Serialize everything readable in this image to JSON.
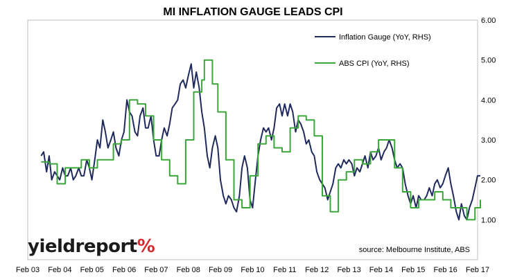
{
  "chart_data": {
    "type": "line",
    "title": "MI INFLATION GAUGE LEADS CPI",
    "x_ticks": [
      "Feb 03",
      "Feb 04",
      "Feb 05",
      "Feb 06",
      "Feb 07",
      "Feb 08",
      "Feb 09",
      "Feb 10",
      "Feb 11",
      "Feb 12",
      "Feb 13",
      "Feb 14",
      "Feb 15",
      "Feb 16",
      "Feb 17"
    ],
    "y_ticks": [
      "6.00",
      "5.00",
      "4.00",
      "3.00",
      "2.00",
      "1.00"
    ],
    "ylim": [
      0,
      6
    ],
    "xlim": [
      2003.083,
      2017.083
    ],
    "y_axis_side": "right",
    "grid": false,
    "legend_position": "top-right",
    "source": "source: Melbourne Institute, ABS",
    "series": [
      {
        "name": "Inflation Gauge (YoY, RHS)",
        "color": "#1f2a5c",
        "points": [
          [
            2003.5,
            2.6
          ],
          [
            2003.58,
            2.7
          ],
          [
            2003.67,
            2.2
          ],
          [
            2003.75,
            2.6
          ],
          [
            2003.83,
            2.0
          ],
          [
            2003.92,
            2.2
          ],
          [
            2004.0,
            2.1
          ],
          [
            2004.08,
            2.0
          ],
          [
            2004.17,
            2.3
          ],
          [
            2004.25,
            2.1
          ],
          [
            2004.33,
            2.1
          ],
          [
            2004.42,
            2.3
          ],
          [
            2004.5,
            2.0
          ],
          [
            2004.58,
            2.1
          ],
          [
            2004.67,
            2.3
          ],
          [
            2004.75,
            2.1
          ],
          [
            2004.83,
            2.1
          ],
          [
            2004.92,
            2.5
          ],
          [
            2005.0,
            2.3
          ],
          [
            2005.08,
            2.0
          ],
          [
            2005.17,
            2.5
          ],
          [
            2005.25,
            3.0
          ],
          [
            2005.33,
            2.8
          ],
          [
            2005.42,
            3.5
          ],
          [
            2005.5,
            3.2
          ],
          [
            2005.58,
            2.8
          ],
          [
            2005.67,
            3.0
          ],
          [
            2005.75,
            3.2
          ],
          [
            2005.83,
            2.8
          ],
          [
            2005.92,
            2.6
          ],
          [
            2006.0,
            3.0
          ],
          [
            2006.08,
            3.2
          ],
          [
            2006.17,
            4.0
          ],
          [
            2006.25,
            3.7
          ],
          [
            2006.33,
            3.6
          ],
          [
            2006.42,
            3.2
          ],
          [
            2006.5,
            3.1
          ],
          [
            2006.58,
            3.6
          ],
          [
            2006.67,
            3.8
          ],
          [
            2006.75,
            3.3
          ],
          [
            2006.83,
            3.3
          ],
          [
            2006.92,
            3.6
          ],
          [
            2007.0,
            3.0
          ],
          [
            2007.08,
            2.6
          ],
          [
            2007.17,
            2.6
          ],
          [
            2007.25,
            3.0
          ],
          [
            2007.33,
            3.3
          ],
          [
            2007.42,
            3.1
          ],
          [
            2007.5,
            3.4
          ],
          [
            2007.58,
            3.8
          ],
          [
            2007.67,
            3.9
          ],
          [
            2007.75,
            4.0
          ],
          [
            2007.83,
            4.4
          ],
          [
            2007.92,
            4.5
          ],
          [
            2008.0,
            4.3
          ],
          [
            2008.08,
            4.6
          ],
          [
            2008.17,
            4.9
          ],
          [
            2008.25,
            4.3
          ],
          [
            2008.33,
            4.7
          ],
          [
            2008.42,
            4.3
          ],
          [
            2008.5,
            3.7
          ],
          [
            2008.58,
            3.3
          ],
          [
            2008.67,
            2.6
          ],
          [
            2008.75,
            2.3
          ],
          [
            2008.83,
            2.8
          ],
          [
            2008.92,
            3.1
          ],
          [
            2009.0,
            2.8
          ],
          [
            2009.08,
            2.0
          ],
          [
            2009.17,
            1.6
          ],
          [
            2009.25,
            1.4
          ],
          [
            2009.33,
            1.6
          ],
          [
            2009.42,
            1.5
          ],
          [
            2009.5,
            1.3
          ],
          [
            2009.58,
            1.2
          ],
          [
            2009.67,
            1.6
          ],
          [
            2009.75,
            2.3
          ],
          [
            2009.83,
            2.6
          ],
          [
            2009.92,
            2.3
          ],
          [
            2010.0,
            1.5
          ],
          [
            2010.08,
            1.3
          ],
          [
            2010.17,
            2.0
          ],
          [
            2010.25,
            2.6
          ],
          [
            2010.33,
            3.0
          ],
          [
            2010.42,
            3.3
          ],
          [
            2010.5,
            3.2
          ],
          [
            2010.58,
            3.3
          ],
          [
            2010.67,
            3.0
          ],
          [
            2010.75,
            3.3
          ],
          [
            2010.83,
            3.8
          ],
          [
            2010.92,
            3.9
          ],
          [
            2011.0,
            3.6
          ],
          [
            2011.08,
            3.9
          ],
          [
            2011.17,
            3.6
          ],
          [
            2011.25,
            3.9
          ],
          [
            2011.33,
            3.7
          ],
          [
            2011.42,
            3.2
          ],
          [
            2011.5,
            3.5
          ],
          [
            2011.58,
            3.4
          ],
          [
            2011.67,
            3.2
          ],
          [
            2011.75,
            2.9
          ],
          [
            2011.83,
            3.0
          ],
          [
            2011.92,
            2.7
          ],
          [
            2012.0,
            2.6
          ],
          [
            2012.08,
            2.2
          ],
          [
            2012.17,
            2.0
          ],
          [
            2012.25,
            1.9
          ],
          [
            2012.33,
            1.8
          ],
          [
            2012.42,
            1.5
          ],
          [
            2012.5,
            1.7
          ],
          [
            2012.58,
            1.9
          ],
          [
            2012.67,
            2.3
          ],
          [
            2012.75,
            2.4
          ],
          [
            2012.83,
            2.3
          ],
          [
            2012.92,
            2.5
          ],
          [
            2013.0,
            2.4
          ],
          [
            2013.08,
            2.5
          ],
          [
            2013.17,
            2.4
          ],
          [
            2013.25,
            2.1
          ],
          [
            2013.33,
            2.3
          ],
          [
            2013.42,
            2.2
          ],
          [
            2013.5,
            2.4
          ],
          [
            2013.58,
            2.6
          ],
          [
            2013.67,
            2.3
          ],
          [
            2013.75,
            2.7
          ],
          [
            2013.83,
            2.5
          ],
          [
            2013.92,
            2.6
          ],
          [
            2014.0,
            2.8
          ],
          [
            2014.08,
            2.5
          ],
          [
            2014.17,
            2.7
          ],
          [
            2014.25,
            2.8
          ],
          [
            2014.33,
            3.0
          ],
          [
            2014.42,
            2.8
          ],
          [
            2014.5,
            2.5
          ],
          [
            2014.58,
            2.3
          ],
          [
            2014.67,
            2.4
          ],
          [
            2014.75,
            2.3
          ],
          [
            2014.83,
            1.9
          ],
          [
            2014.92,
            1.6
          ],
          [
            2015.0,
            1.4
          ],
          [
            2015.08,
            1.6
          ],
          [
            2015.17,
            1.3
          ],
          [
            2015.25,
            1.6
          ],
          [
            2015.33,
            1.5
          ],
          [
            2015.42,
            1.5
          ],
          [
            2015.5,
            1.6
          ],
          [
            2015.58,
            1.8
          ],
          [
            2015.67,
            1.6
          ],
          [
            2015.75,
            1.9
          ],
          [
            2015.83,
            2.0
          ],
          [
            2015.92,
            1.8
          ],
          [
            2016.0,
            1.9
          ],
          [
            2016.08,
            2.1
          ],
          [
            2016.17,
            2.3
          ],
          [
            2016.25,
            1.9
          ],
          [
            2016.33,
            1.6
          ],
          [
            2016.42,
            1.2
          ],
          [
            2016.5,
            1.0
          ],
          [
            2016.58,
            1.4
          ],
          [
            2016.67,
            1.1
          ],
          [
            2016.75,
            1.0
          ],
          [
            2016.83,
            1.3
          ],
          [
            2016.92,
            1.5
          ],
          [
            2017.0,
            1.8
          ],
          [
            2017.08,
            2.1
          ],
          [
            2017.17,
            2.1
          ]
        ]
      },
      {
        "name": "ABS CPI (YoY, RHS)",
        "color": "#3aa63a",
        "step": true,
        "points": [
          [
            2003.5,
            2.45
          ],
          [
            2003.75,
            2.4
          ],
          [
            2004.0,
            1.9
          ],
          [
            2004.25,
            2.3
          ],
          [
            2004.5,
            2.3
          ],
          [
            2004.75,
            2.5
          ],
          [
            2005.0,
            2.3
          ],
          [
            2005.25,
            2.5
          ],
          [
            2005.5,
            2.5
          ],
          [
            2005.75,
            2.9
          ],
          [
            2006.0,
            3.0
          ],
          [
            2006.25,
            4.0
          ],
          [
            2006.5,
            3.9
          ],
          [
            2006.75,
            3.6
          ],
          [
            2007.0,
            3.0
          ],
          [
            2007.25,
            2.5
          ],
          [
            2007.5,
            2.1
          ],
          [
            2007.75,
            1.9
          ],
          [
            2008.0,
            3.0
          ],
          [
            2008.25,
            4.2
          ],
          [
            2008.5,
            4.5
          ],
          [
            2008.58,
            5.0
          ],
          [
            2008.83,
            4.4
          ],
          [
            2009.0,
            3.7
          ],
          [
            2009.25,
            2.5
          ],
          [
            2009.5,
            1.5
          ],
          [
            2009.75,
            1.3
          ],
          [
            2010.0,
            2.1
          ],
          [
            2010.25,
            2.9
          ],
          [
            2010.5,
            3.1
          ],
          [
            2010.75,
            2.8
          ],
          [
            2011.0,
            2.7
          ],
          [
            2011.25,
            3.3
          ],
          [
            2011.5,
            3.6
          ],
          [
            2011.75,
            3.5
          ],
          [
            2012.0,
            3.1
          ],
          [
            2012.25,
            1.6
          ],
          [
            2012.5,
            1.2
          ],
          [
            2012.75,
            2.0
          ],
          [
            2013.0,
            2.2
          ],
          [
            2013.25,
            2.5
          ],
          [
            2013.5,
            2.4
          ],
          [
            2013.75,
            2.7
          ],
          [
            2014.0,
            3.0
          ],
          [
            2014.25,
            3.0
          ],
          [
            2014.5,
            2.3
          ],
          [
            2014.75,
            1.7
          ],
          [
            2015.0,
            1.3
          ],
          [
            2015.25,
            1.5
          ],
          [
            2015.5,
            1.5
          ],
          [
            2015.75,
            1.7
          ],
          [
            2016.0,
            1.5
          ],
          [
            2016.25,
            1.3
          ],
          [
            2016.5,
            1.3
          ],
          [
            2016.75,
            1.0
          ],
          [
            2017.0,
            1.3
          ],
          [
            2017.17,
            1.5
          ]
        ]
      }
    ]
  },
  "logo": {
    "text": "yieldreport",
    "symbol": "%"
  }
}
